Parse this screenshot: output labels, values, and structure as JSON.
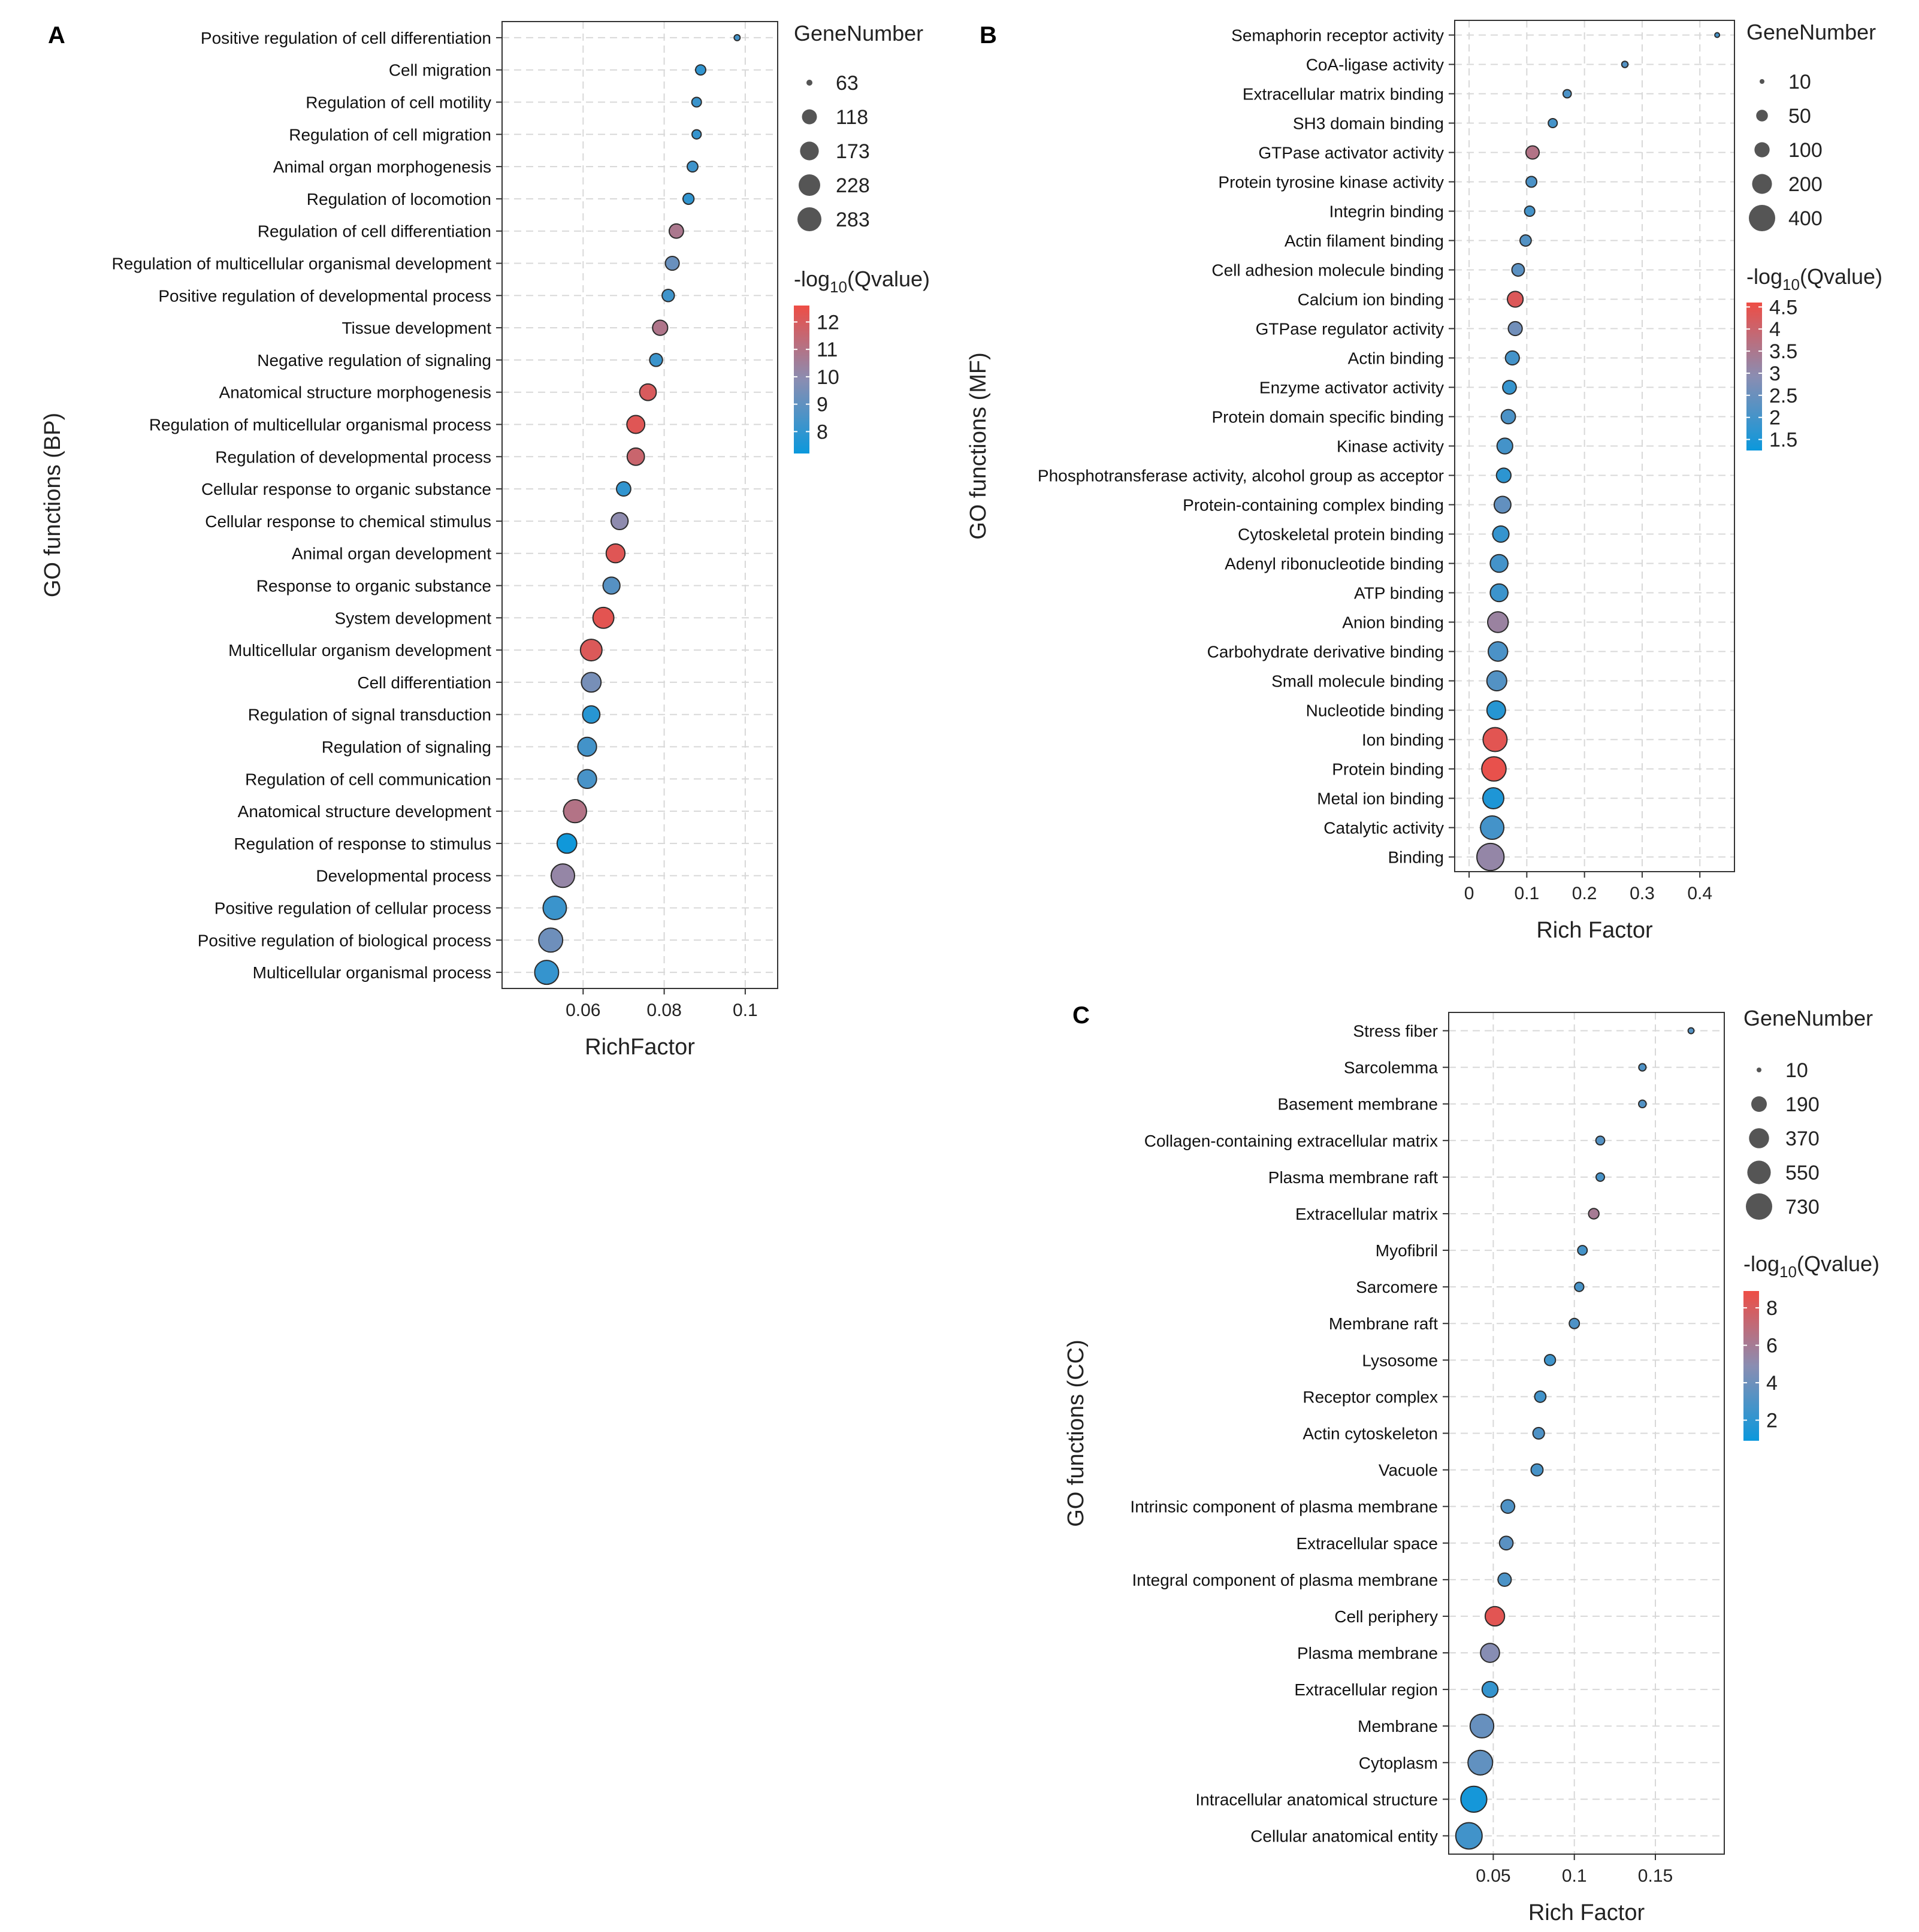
{
  "chart_data": [
    {
      "id": "A",
      "type": "scatter",
      "panel_label": "A",
      "xlabel": "RichFactor",
      "ylabel": "GO functions (BP)",
      "xlim": [
        0.04,
        0.108
      ],
      "xticks": [
        0.06,
        0.08,
        0.1
      ],
      "xtick_labels": [
        "0.06",
        "0.08",
        "0.1"
      ],
      "size_legend": {
        "title": "GeneNumber",
        "values": [
          63,
          118,
          173,
          228,
          283
        ],
        "labels": [
          "63",
          "118",
          "173",
          "228",
          "283"
        ]
      },
      "color_legend": {
        "title_prefix": "-log",
        "title_sub": "10",
        "title_suffix": "(Qvalue)",
        "min": 7.2,
        "max": 12.6,
        "ticks": [
          12,
          11,
          10,
          9,
          8
        ],
        "tick_labels": [
          "12",
          "11",
          "10",
          "9",
          "8"
        ]
      },
      "points": [
        {
          "term": "Positive regulation of cell differentiation",
          "x": 0.098,
          "genes": 63,
          "q": 8.4
        },
        {
          "term": "Cell migration",
          "x": 0.089,
          "genes": 75,
          "q": 8.0
        },
        {
          "term": "Regulation of cell motility",
          "x": 0.088,
          "genes": 72,
          "q": 8.2
        },
        {
          "term": "Regulation of cell migration",
          "x": 0.088,
          "genes": 70,
          "q": 8.1
        },
        {
          "term": "Animal organ morphogenesis",
          "x": 0.087,
          "genes": 78,
          "q": 8.3
        },
        {
          "term": "Regulation of locomotion",
          "x": 0.086,
          "genes": 80,
          "q": 8.0
        },
        {
          "term": "Regulation of cell differentiation",
          "x": 0.083,
          "genes": 110,
          "q": 10.8
        },
        {
          "term": "Regulation of multicellular organismal development",
          "x": 0.082,
          "genes": 105,
          "q": 9.2
        },
        {
          "term": "Positive regulation of developmental process",
          "x": 0.081,
          "genes": 90,
          "q": 8.3
        },
        {
          "term": "Tissue development",
          "x": 0.079,
          "genes": 120,
          "q": 10.9
        },
        {
          "term": "Negative regulation of signaling",
          "x": 0.078,
          "genes": 95,
          "q": 8.2
        },
        {
          "term": "Anatomical structure morphogenesis",
          "x": 0.076,
          "genes": 140,
          "q": 12.0
        },
        {
          "term": "Regulation of multicellular organismal process",
          "x": 0.073,
          "genes": 160,
          "q": 12.2
        },
        {
          "term": "Regulation of developmental process",
          "x": 0.073,
          "genes": 150,
          "q": 11.6
        },
        {
          "term": "Cellular response to organic substance",
          "x": 0.07,
          "genes": 110,
          "q": 8.0
        },
        {
          "term": "Cellular response to chemical stimulus",
          "x": 0.069,
          "genes": 145,
          "q": 10.0
        },
        {
          "term": "Animal organ development",
          "x": 0.068,
          "genes": 175,
          "q": 12.2
        },
        {
          "term": "Response to organic substance",
          "x": 0.067,
          "genes": 145,
          "q": 8.8
        },
        {
          "term": "System development",
          "x": 0.065,
          "genes": 215,
          "q": 12.3
        },
        {
          "term": "Multicellular organism development",
          "x": 0.062,
          "genes": 228,
          "q": 12.1
        },
        {
          "term": "Cell differentiation",
          "x": 0.062,
          "genes": 190,
          "q": 9.5
        },
        {
          "term": "Regulation of signal transduction",
          "x": 0.062,
          "genes": 150,
          "q": 7.8
        },
        {
          "term": "Regulation of signaling",
          "x": 0.061,
          "genes": 175,
          "q": 8.4
        },
        {
          "term": "Regulation of cell communication",
          "x": 0.061,
          "genes": 175,
          "q": 8.5
        },
        {
          "term": "Anatomical structure development",
          "x": 0.058,
          "genes": 260,
          "q": 11.0
        },
        {
          "term": "Regulation of response to stimulus",
          "x": 0.056,
          "genes": 190,
          "q": 7.3
        },
        {
          "term": "Developmental process",
          "x": 0.055,
          "genes": 270,
          "q": 10.2
        },
        {
          "term": "Positive regulation of cellular process",
          "x": 0.053,
          "genes": 268,
          "q": 8.2
        },
        {
          "term": "Positive regulation of biological process",
          "x": 0.052,
          "genes": 283,
          "q": 9.3
        },
        {
          "term": "Multicellular organismal process",
          "x": 0.051,
          "genes": 283,
          "q": 8.1
        }
      ]
    },
    {
      "id": "B",
      "type": "scatter",
      "panel_label": "B",
      "xlabel": "Rich Factor",
      "ylabel": "GO functions (MF)",
      "xlim": [
        -0.025,
        0.46
      ],
      "xticks": [
        0,
        0.1,
        0.2,
        0.3,
        0.4
      ],
      "xtick_labels": [
        "0",
        "0.1",
        "0.2",
        "0.3",
        "0.4"
      ],
      "size_legend": {
        "title": "GeneNumber",
        "values": [
          10,
          50,
          100,
          200,
          400
        ],
        "labels": [
          "10",
          "50",
          "100",
          "200",
          "400"
        ]
      },
      "color_legend": {
        "title_prefix": "-log",
        "title_sub": "10",
        "title_suffix": "(Qvalue)",
        "min": 1.25,
        "max": 4.6,
        "ticks": [
          4.5,
          4,
          3.5,
          3,
          2.5,
          2,
          1.5
        ],
        "tick_labels": [
          "4.5",
          "4",
          "3.5",
          "3",
          "2.5",
          "2",
          "1.5"
        ]
      },
      "points": [
        {
          "term": "Semaphorin receptor activity",
          "x": 0.43,
          "genes": 10,
          "q": 2.0
        },
        {
          "term": "CoA-ligase activity",
          "x": 0.27,
          "genes": 12,
          "q": 2.2
        },
        {
          "term": "Extracellular matrix binding",
          "x": 0.17,
          "genes": 20,
          "q": 2.1
        },
        {
          "term": "SH3 domain binding",
          "x": 0.145,
          "genes": 25,
          "q": 2.0
        },
        {
          "term": "GTPase activator activity",
          "x": 0.11,
          "genes": 70,
          "q": 3.6
        },
        {
          "term": "Protein tyrosine kinase activity",
          "x": 0.108,
          "genes": 40,
          "q": 2.1
        },
        {
          "term": "Integrin binding",
          "x": 0.105,
          "genes": 35,
          "q": 2.0
        },
        {
          "term": "Actin filament binding",
          "x": 0.098,
          "genes": 45,
          "q": 2.2
        },
        {
          "term": "Cell adhesion molecule binding",
          "x": 0.085,
          "genes": 60,
          "q": 2.3
        },
        {
          "term": "Calcium ion binding",
          "x": 0.08,
          "genes": 110,
          "q": 4.3
        },
        {
          "term": "GTPase regulator activity",
          "x": 0.08,
          "genes": 80,
          "q": 2.6
        },
        {
          "term": "Actin binding",
          "x": 0.075,
          "genes": 80,
          "q": 2.0
        },
        {
          "term": "Enzyme activator activity",
          "x": 0.07,
          "genes": 75,
          "q": 1.8
        },
        {
          "term": "Protein domain specific binding",
          "x": 0.068,
          "genes": 85,
          "q": 2.1
        },
        {
          "term": "Kinase activity",
          "x": 0.062,
          "genes": 110,
          "q": 2.0
        },
        {
          "term": "Phosphotransferase activity, alcohol group as acceptor",
          "x": 0.06,
          "genes": 90,
          "q": 1.7
        },
        {
          "term": "Protein-containing complex binding",
          "x": 0.058,
          "genes": 130,
          "q": 2.4
        },
        {
          "term": "Cytoskeletal protein binding",
          "x": 0.055,
          "genes": 120,
          "q": 1.8
        },
        {
          "term": "Adenyl ribonucleotide binding",
          "x": 0.052,
          "genes": 150,
          "q": 2.0
        },
        {
          "term": "ATP binding",
          "x": 0.052,
          "genes": 150,
          "q": 1.9
        },
        {
          "term": "Anion binding",
          "x": 0.05,
          "genes": 220,
          "q": 3.2
        },
        {
          "term": "Carbohydrate derivative binding",
          "x": 0.05,
          "genes": 190,
          "q": 2.1
        },
        {
          "term": "Small molecule binding",
          "x": 0.048,
          "genes": 200,
          "q": 2.2
        },
        {
          "term": "Nucleotide binding",
          "x": 0.047,
          "genes": 170,
          "q": 1.6
        },
        {
          "term": "Ion binding",
          "x": 0.045,
          "genes": 320,
          "q": 4.4
        },
        {
          "term": "Protein binding",
          "x": 0.043,
          "genes": 330,
          "q": 4.5
        },
        {
          "term": "Metal ion binding",
          "x": 0.042,
          "genes": 230,
          "q": 1.5
        },
        {
          "term": "Catalytic activity",
          "x": 0.04,
          "genes": 300,
          "q": 2.0
        },
        {
          "term": "Binding",
          "x": 0.037,
          "genes": 430,
          "q": 3.1
        }
      ]
    },
    {
      "id": "C",
      "type": "scatter",
      "panel_label": "C",
      "xlabel": "Rich Factor",
      "ylabel": "GO functions (CC)",
      "xlim": [
        0.0225,
        0.1925
      ],
      "xticks": [
        0.05,
        0.1,
        0.15
      ],
      "xtick_labels": [
        "0.05",
        "0.1",
        "0.15"
      ],
      "size_legend": {
        "title": "GeneNumber",
        "values": [
          10,
          190,
          370,
          550,
          730
        ],
        "labels": [
          "10",
          "190",
          "370",
          "550",
          "730"
        ]
      },
      "color_legend": {
        "title_prefix": "-log",
        "title_sub": "10",
        "title_suffix": "(Qvalue)",
        "min": 0.9,
        "max": 8.9,
        "ticks": [
          8,
          6,
          4,
          2
        ],
        "tick_labels": [
          "8",
          "6",
          "4",
          "2"
        ]
      },
      "points": [
        {
          "term": "Stress fiber",
          "x": 0.172,
          "genes": 12,
          "q": 3.2
        },
        {
          "term": "Sarcolemma",
          "x": 0.142,
          "genes": 20,
          "q": 3.0
        },
        {
          "term": "Basement membrane",
          "x": 0.142,
          "genes": 22,
          "q": 3.1
        },
        {
          "term": "Collagen-containing extracellular matrix",
          "x": 0.116,
          "genes": 35,
          "q": 3.2
        },
        {
          "term": "Plasma membrane raft",
          "x": 0.116,
          "genes": 30,
          "q": 2.8
        },
        {
          "term": "Extracellular matrix",
          "x": 0.112,
          "genes": 60,
          "q": 6.0
        },
        {
          "term": "Myofibril",
          "x": 0.105,
          "genes": 45,
          "q": 2.7
        },
        {
          "term": "Sarcomere",
          "x": 0.103,
          "genes": 40,
          "q": 2.8
        },
        {
          "term": "Membrane raft",
          "x": 0.1,
          "genes": 55,
          "q": 3.0
        },
        {
          "term": "Lysosome",
          "x": 0.085,
          "genes": 70,
          "q": 2.5
        },
        {
          "term": "Receptor complex",
          "x": 0.079,
          "genes": 75,
          "q": 2.6
        },
        {
          "term": "Actin cytoskeleton",
          "x": 0.078,
          "genes": 80,
          "q": 3.0
        },
        {
          "term": "Vacuole",
          "x": 0.077,
          "genes": 90,
          "q": 2.8
        },
        {
          "term": "Intrinsic component of plasma membrane",
          "x": 0.059,
          "genes": 130,
          "q": 3.0
        },
        {
          "term": "Extracellular space",
          "x": 0.058,
          "genes": 130,
          "q": 3.4
        },
        {
          "term": "Integral component of plasma membrane",
          "x": 0.057,
          "genes": 120,
          "q": 2.9
        },
        {
          "term": "Cell periphery",
          "x": 0.051,
          "genes": 340,
          "q": 8.4
        },
        {
          "term": "Plasma membrane",
          "x": 0.048,
          "genes": 320,
          "q": 4.8
        },
        {
          "term": "Extracellular region",
          "x": 0.048,
          "genes": 200,
          "q": 2.2
        },
        {
          "term": "Membrane",
          "x": 0.043,
          "genes": 560,
          "q": 3.8
        },
        {
          "term": "Cytoplasm",
          "x": 0.042,
          "genes": 620,
          "q": 3.6
        },
        {
          "term": "Intracellular anatomical structure",
          "x": 0.038,
          "genes": 700,
          "q": 1.2
        },
        {
          "term": "Cellular anatomical entity",
          "x": 0.035,
          "genes": 730,
          "q": 2.6
        }
      ]
    }
  ],
  "colors": {
    "low": "#0b98dc",
    "mid": "#8a8db2",
    "high": "#ee4d45",
    "frame": "#333333",
    "grid": "#d8d8d8"
  }
}
